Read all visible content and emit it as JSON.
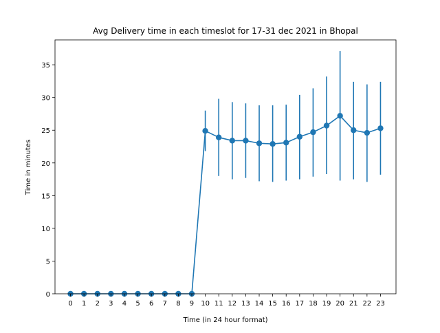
{
  "chart_data": {
    "type": "line",
    "title": "Avg Delivery time in each timeslot for 17-31 dec 2021 in Bhopal",
    "xlabel": "Time (in 24 hour format)",
    "ylabel": "Time in minutes",
    "x": [
      0,
      1,
      2,
      3,
      4,
      5,
      6,
      7,
      8,
      9,
      10,
      11,
      12,
      13,
      14,
      15,
      16,
      17,
      18,
      19,
      20,
      21,
      22,
      23
    ],
    "xlim": [
      -1.15,
      24.15
    ],
    "ylim": [
      0,
      38.8
    ],
    "xticks": [
      "0",
      "1",
      "2",
      "3",
      "4",
      "5",
      "6",
      "7",
      "8",
      "9",
      "10",
      "11",
      "12",
      "13",
      "14",
      "15",
      "16",
      "17",
      "18",
      "19",
      "20",
      "21",
      "22",
      "23"
    ],
    "yticks": [
      "0",
      "5",
      "10",
      "15",
      "20",
      "25",
      "30",
      "35"
    ],
    "grid": false,
    "color": "#1f77b4",
    "series": [
      {
        "values": [
          0,
          0,
          0,
          0,
          0,
          0,
          0,
          0,
          0,
          0,
          24.9,
          23.9,
          23.4,
          23.4,
          23.0,
          22.9,
          23.1,
          24.0,
          24.7,
          25.7,
          27.2,
          25.0,
          24.6,
          25.3
        ],
        "error_low": [
          0,
          0,
          0,
          0,
          0,
          0,
          0,
          0,
          0,
          0,
          21.8,
          18.0,
          17.5,
          17.7,
          17.2,
          17.1,
          17.3,
          17.5,
          17.9,
          18.3,
          17.3,
          17.5,
          17.1,
          18.2
        ],
        "error_high": [
          0,
          0,
          0,
          0,
          0,
          0,
          0,
          0,
          0,
          0,
          28.0,
          29.8,
          29.3,
          29.1,
          28.8,
          28.8,
          28.9,
          30.4,
          31.4,
          33.2,
          37.1,
          32.4,
          32.0,
          32.4
        ]
      }
    ]
  }
}
